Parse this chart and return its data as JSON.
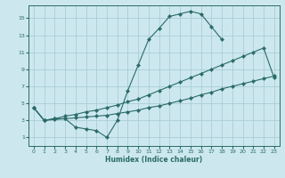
{
  "xlabel": "Humidex (Indice chaleur)",
  "bg_color": "#cce8ee",
  "grid_color": "#aacdd8",
  "line_color": "#2a6b68",
  "xlim": [
    -0.5,
    23.5
  ],
  "ylim": [
    0,
    16.5
  ],
  "xticks": [
    0,
    1,
    2,
    3,
    4,
    5,
    6,
    7,
    8,
    9,
    10,
    11,
    12,
    13,
    14,
    15,
    16,
    17,
    18,
    19,
    20,
    21,
    22,
    23
  ],
  "yticks": [
    1,
    3,
    5,
    7,
    9,
    11,
    13,
    15
  ],
  "curve1_x": [
    0,
    1,
    2,
    3,
    4,
    5,
    6,
    7,
    8,
    9,
    10,
    11,
    12,
    13,
    14,
    15,
    16,
    17,
    18
  ],
  "curve1_y": [
    4.5,
    3.0,
    3.2,
    3.2,
    2.2,
    2.0,
    1.8,
    1.0,
    3.0,
    6.5,
    9.5,
    12.5,
    13.8,
    15.2,
    15.5,
    15.8,
    15.5,
    14.0,
    12.5
  ],
  "curve2_x": [
    0,
    1,
    2,
    3,
    4,
    5,
    6,
    7,
    8,
    9,
    10,
    11,
    12,
    13,
    14,
    15,
    16,
    17,
    18,
    19,
    20,
    21,
    22,
    23
  ],
  "curve2_y": [
    4.5,
    3.0,
    3.2,
    3.5,
    3.7,
    4.0,
    4.2,
    4.5,
    4.8,
    5.2,
    5.5,
    6.0,
    6.5,
    7.0,
    7.5,
    8.0,
    8.5,
    9.0,
    9.5,
    10.0,
    10.5,
    11.0,
    11.5,
    8.0
  ],
  "curve3_x": [
    0,
    1,
    2,
    3,
    4,
    5,
    6,
    7,
    8,
    9,
    10,
    11,
    12,
    13,
    14,
    15,
    16,
    17,
    18,
    19,
    20,
    21,
    22,
    23
  ],
  "curve3_y": [
    4.5,
    3.0,
    3.1,
    3.2,
    3.3,
    3.4,
    3.5,
    3.6,
    3.8,
    4.0,
    4.2,
    4.5,
    4.7,
    5.0,
    5.3,
    5.6,
    6.0,
    6.3,
    6.7,
    7.0,
    7.3,
    7.6,
    7.9,
    8.2
  ]
}
